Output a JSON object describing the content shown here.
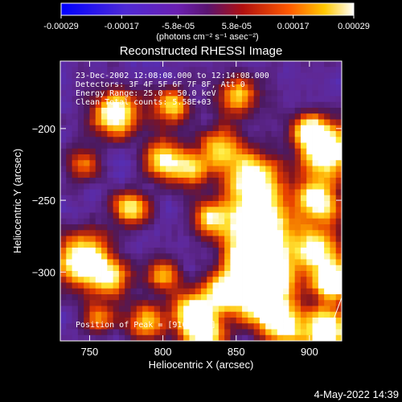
{
  "colorbar": {
    "ticks": [
      "-0.00029",
      "-0.00017",
      "-5.8e-05",
      "5.8e-05",
      "0.00017",
      "0.00029"
    ],
    "unit_label": "(photons cm⁻² s⁻¹ asec⁻²)",
    "range": [
      -0.00029,
      0.00029
    ]
  },
  "chart_data": {
    "type": "heatmap",
    "title": "Reconstructed RHESSI Image",
    "xlabel": "Heliocentric X (arcsec)",
    "ylabel": "Heliocentric Y (arcsec)",
    "xlim": [
      730,
      922
    ],
    "ylim": [
      -348,
      -153
    ],
    "xticks": [
      750,
      800,
      850,
      900
    ],
    "yticks": [
      -200,
      -250,
      -300
    ],
    "ytick_labels": [
      "−200",
      "−250",
      "−300"
    ],
    "annotations": [
      "23-Dec-2002 12:08:08.000 to 12:14:08.000",
      "Detectors: 3F 4F 5F 6F 7F 8F, Att 0",
      "Energy Range: 25.0 - 50.0 keV",
      "Clean     Total counts: 5.58E+03"
    ],
    "peak_label": "Position of Peak = [916,-307]",
    "peak": [
      916,
      -307
    ]
  },
  "footer": {
    "timestamp": "4-May-2022 14:39"
  }
}
